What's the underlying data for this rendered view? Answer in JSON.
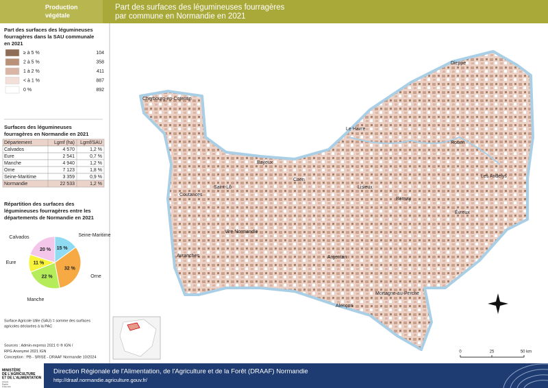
{
  "header": {
    "theme": [
      "Production",
      "végétale"
    ],
    "title": [
      "Part des surfaces des légumineuses fourragères",
      "par commune en Normandie en 2021"
    ]
  },
  "legend": {
    "title": [
      "Part des surfaces des légumineuses",
      "fourragères dans la SAU communale",
      "en 2021"
    ],
    "classes": [
      {
        "label": "≥ à 5 %",
        "count": 104,
        "color": "#8e6c55"
      },
      {
        "label": "2 à 5 %",
        "count": 358,
        "color": "#b89178"
      },
      {
        "label": "1 à 2 %",
        "count": 411,
        "color": "#d9b5a6"
      },
      {
        "label": "< à 1 %",
        "count": 887,
        "color": "#f1dfd8"
      },
      {
        "label": "0 %",
        "count": 892,
        "color": "#ffffff"
      }
    ]
  },
  "table": {
    "title": [
      "Surfaces des légumineuses",
      "fourragères en Normandie en 2021"
    ],
    "columns": [
      "Département",
      "Lgmf (ha)",
      "Lgmf/SAU"
    ],
    "rows": [
      [
        "Calvados",
        "4 570",
        "1,2 %"
      ],
      [
        "Eure",
        "2 541",
        "0,7 %"
      ],
      [
        "Manche",
        "4 940",
        "1,2 %"
      ],
      [
        "Orne",
        "7 123",
        "1,8 %"
      ],
      [
        "Seine-Maritime",
        "3 359",
        "0,9 %"
      ],
      [
        "Normandie",
        "22 533",
        "1,2 %"
      ]
    ]
  },
  "pie": {
    "title": [
      "Répartition des surfaces des",
      "légumineuses fourragères entre les",
      "départements de Normandie en 2021"
    ],
    "categories": [
      "Seine-Maritime",
      "Orne",
      "Manche",
      "Eure",
      "Calvados"
    ],
    "values": [
      15,
      32,
      22,
      11,
      20
    ],
    "value_labels": [
      "15 %",
      "32 %",
      "22 %",
      "11 %",
      "20 %"
    ],
    "colors": [
      "#8fdcf2",
      "#f7a943",
      "#b5ec5a",
      "#f7f23a",
      "#f3c6ea"
    ]
  },
  "notes": {
    "sau": [
      "Surface Agricole Utile (SAU) = somme des surfaces",
      "agricoles déclarées à la PAC"
    ],
    "sources": [
      "Sources      : Admin-express 2021 © ® IGN /",
      "RPG Anonymé 2021 IGN",
      "Conception : PB - SRISE - DRAAF Normandie 10/2024"
    ]
  },
  "map": {
    "cities": [
      "Dieppe",
      "Cherbourg-en-Cotentin",
      "Le Havre",
      "Rouen",
      "Bayeux",
      "Caen",
      "Saint-Lô",
      "Lisieux",
      "Les Andelys",
      "Coutances",
      "Bernay",
      "Évreux",
      "Vire Normandie",
      "Argentan",
      "Avranches",
      "Mortagne-au-Perche",
      "Alençon"
    ],
    "scale": [
      "0",
      "25",
      "50 km"
    ]
  },
  "footer": {
    "logo": [
      "MINISTÈRE",
      "DE L'AGRICULTURE",
      "ET DE L'ALIMENTATION"
    ],
    "motto": [
      "Liberté",
      "Égalité",
      "Fraternité"
    ],
    "org": "Direction Régionale de l'Alimentation, de l'Agriculture et de la Forêt (DRAAF) Normandie",
    "url": "http://draaf.normandie.agriculture.gouv.fr/"
  }
}
